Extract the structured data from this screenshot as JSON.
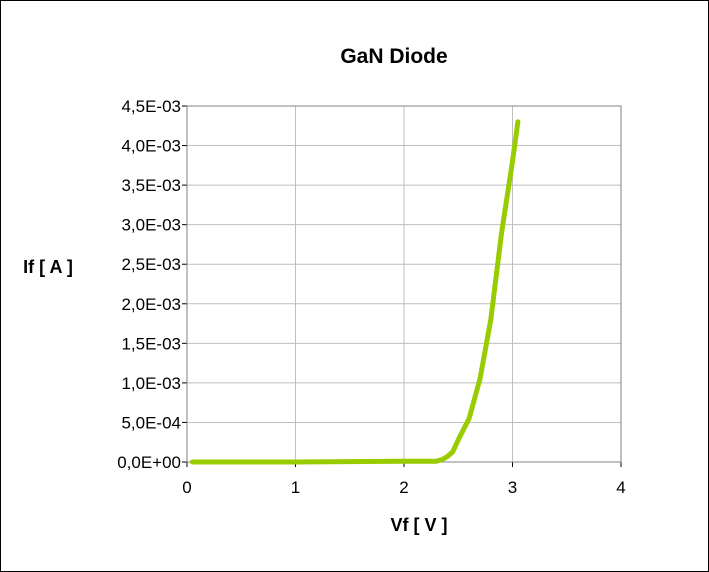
{
  "chart_data": {
    "type": "line",
    "title": "GaN Diode",
    "xlabel": "Vf [ V ]",
    "ylabel": "If [ A ]",
    "xlim": [
      0,
      4
    ],
    "ylim": [
      0,
      0.0045
    ],
    "x_ticks": [
      "0",
      "1",
      "2",
      "3",
      "4"
    ],
    "y_ticks": [
      "0,0E+00",
      "5,0E-04",
      "1,0E-03",
      "1,5E-03",
      "2,0E-03",
      "2,5E-03",
      "3,0E-03",
      "3,5E-03",
      "4,0E-03",
      "4,5E-03"
    ],
    "grid": true,
    "series": [
      {
        "color": "#99CC00",
        "x": [
          0.05,
          0.5,
          1.0,
          1.5,
          2.0,
          2.2,
          2.3,
          2.35,
          2.4,
          2.45,
          2.5,
          2.6,
          2.7,
          2.8,
          2.9,
          3.0,
          3.05
        ],
        "y": [
          0,
          0,
          0,
          5e-06,
          1e-05,
          1e-05,
          1e-05,
          3e-05,
          7e-05,
          0.00013,
          0.00028,
          0.00055,
          0.00105,
          0.0018,
          0.0029,
          0.0038,
          0.0043
        ]
      }
    ]
  }
}
